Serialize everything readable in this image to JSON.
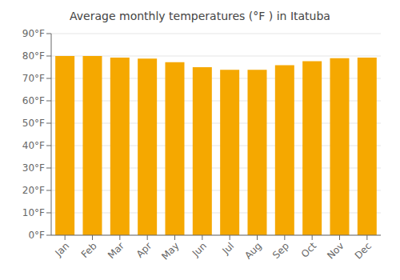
{
  "chart_data": {
    "type": "bar",
    "title": "Average monthly temperatures (°F ) in Itatuba",
    "categories": [
      "Jan",
      "Feb",
      "Mar",
      "Apr",
      "May",
      "Jun",
      "Jul",
      "Aug",
      "Sep",
      "Oct",
      "Nov",
      "Dec"
    ],
    "values": [
      80.0,
      80.0,
      79.3,
      78.8,
      77.2,
      75.0,
      73.8,
      73.8,
      75.9,
      77.7,
      79.0,
      79.3
    ],
    "color": "#F5A800",
    "ylim": [
      0,
      90
    ],
    "yticks": [
      {
        "value": 0,
        "label": "0°F"
      },
      {
        "value": 10,
        "label": "10°F"
      },
      {
        "value": 20,
        "label": "20°F"
      },
      {
        "value": 30,
        "label": "30°F"
      },
      {
        "value": 40,
        "label": "40°F"
      },
      {
        "value": 50,
        "label": "50°F"
      },
      {
        "value": 60,
        "label": "60°F"
      },
      {
        "value": 70,
        "label": "70°F"
      },
      {
        "value": 80,
        "label": "80°F"
      },
      {
        "value": 90,
        "label": "90°F"
      }
    ],
    "grid": true
  }
}
